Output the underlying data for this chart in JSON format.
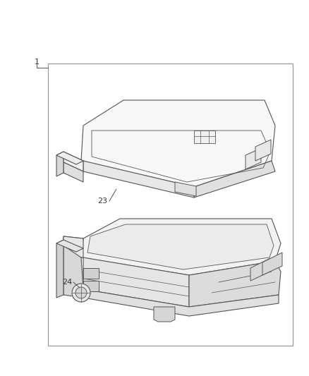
{
  "background_color": "#ffffff",
  "border_color": "#999999",
  "line_color": "#555555",
  "text_color": "#333333",
  "fig_width": 4.38,
  "fig_height": 5.33,
  "dpi": 100,
  "label_1": "1",
  "label_23": "23",
  "label_24": "24"
}
